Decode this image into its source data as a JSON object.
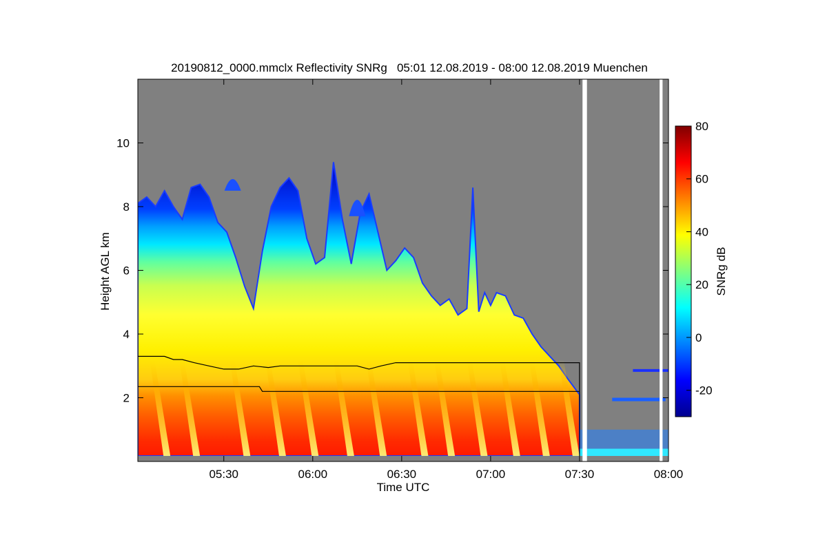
{
  "chart_data": {
    "type": "heatmap",
    "title": "20190812_0000.mmclx Reflectivity SNRg   05:01 12.08.2019 - 08:00 12.08.2019 Muenchen",
    "xlabel": "Time UTC",
    "ylabel": "Height AGL km",
    "x_range_minutes_utc": [
      301,
      480
    ],
    "x_ticks": [
      {
        "label": "05:30",
        "minutes": 330
      },
      {
        "label": "06:00",
        "minutes": 360
      },
      {
        "label": "06:30",
        "minutes": 390
      },
      {
        "label": "07:00",
        "minutes": 420
      },
      {
        "label": "07:30",
        "minutes": 450
      },
      {
        "label": "08:00",
        "minutes": 480
      }
    ],
    "y_range_km": [
      0,
      12
    ],
    "y_ticks": [
      {
        "label": "2",
        "km": 2
      },
      {
        "label": "4",
        "km": 4
      },
      {
        "label": "6",
        "km": 6
      },
      {
        "label": "8",
        "km": 8
      },
      {
        "label": "10",
        "km": 10
      }
    ],
    "colorbar": {
      "label": "SNRg dB",
      "range": [
        -30,
        80
      ],
      "ticks": [
        {
          "label": "80",
          "value": 80
        },
        {
          "label": "60",
          "value": 60
        },
        {
          "label": "40",
          "value": 40
        },
        {
          "label": "20",
          "value": 20
        },
        {
          "label": "0",
          "value": 0
        },
        {
          "label": "-20",
          "value": -20
        }
      ],
      "colors": [
        "#00008f",
        "#0000ff",
        "#0080ff",
        "#00ffff",
        "#80ff80",
        "#ffff00",
        "#ff8000",
        "#ff0000",
        "#800000"
      ]
    },
    "background_color": "#808080",
    "cloud_top_km": [
      [
        301,
        8.1
      ],
      [
        304,
        8.3
      ],
      [
        307,
        8.0
      ],
      [
        310,
        8.5
      ],
      [
        313,
        8.0
      ],
      [
        316,
        7.6
      ],
      [
        319,
        8.6
      ],
      [
        322,
        8.7
      ],
      [
        325,
        8.3
      ],
      [
        328,
        7.5
      ],
      [
        331,
        7.2
      ],
      [
        334,
        6.4
      ],
      [
        337,
        5.5
      ],
      [
        340,
        4.8
      ],
      [
        343,
        6.6
      ],
      [
        346,
        8.0
      ],
      [
        349,
        8.6
      ],
      [
        352,
        8.9
      ],
      [
        355,
        8.5
      ],
      [
        358,
        7.0
      ],
      [
        361,
        6.2
      ],
      [
        364,
        6.4
      ],
      [
        367,
        9.4
      ],
      [
        370,
        7.6
      ],
      [
        373,
        6.2
      ],
      [
        376,
        7.8
      ],
      [
        379,
        8.4
      ],
      [
        382,
        7.2
      ],
      [
        385,
        6.0
      ],
      [
        388,
        6.3
      ],
      [
        391,
        6.7
      ],
      [
        394,
        6.4
      ],
      [
        397,
        5.6
      ],
      [
        400,
        5.2
      ],
      [
        403,
        4.9
      ],
      [
        406,
        5.1
      ],
      [
        409,
        4.6
      ],
      [
        412,
        4.8
      ],
      [
        414,
        8.6
      ],
      [
        416,
        4.7
      ],
      [
        418,
        5.3
      ],
      [
        420,
        4.9
      ],
      [
        422,
        5.3
      ],
      [
        425,
        5.2
      ],
      [
        428,
        4.6
      ],
      [
        431,
        4.5
      ],
      [
        434,
        4.0
      ],
      [
        437,
        3.6
      ],
      [
        440,
        3.3
      ],
      [
        443,
        3.0
      ],
      [
        446,
        2.6
      ],
      [
        450,
        2.1
      ]
    ],
    "cloud_features": [
      {
        "center_min": 333,
        "top_km": 9.1,
        "base_km": 8.5
      },
      {
        "center_min": 375,
        "top_km": 8.6,
        "base_km": 7.7
      }
    ],
    "melting_layer_km": [
      [
        301,
        3.3
      ],
      [
        310,
        3.3
      ],
      [
        313,
        3.2
      ],
      [
        316,
        3.2
      ],
      [
        320,
        3.1
      ],
      [
        325,
        3.0
      ],
      [
        330,
        2.9
      ],
      [
        335,
        2.9
      ],
      [
        340,
        3.0
      ],
      [
        345,
        2.95
      ],
      [
        349,
        3.0
      ],
      [
        353,
        3.0
      ],
      [
        360,
        3.0
      ],
      [
        365,
        3.0
      ],
      [
        370,
        3.0
      ],
      [
        375,
        3.0
      ],
      [
        379,
        2.9
      ],
      [
        383,
        3.0
      ],
      [
        388,
        3.1
      ],
      [
        395,
        3.1
      ],
      [
        403,
        3.1
      ],
      [
        410,
        3.1
      ],
      [
        420,
        3.1
      ],
      [
        430,
        3.1
      ],
      [
        450,
        3.1
      ],
      [
        450,
        2.2
      ]
    ],
    "lower_line_km": [
      [
        301,
        2.35
      ],
      [
        342,
        2.35
      ],
      [
        343,
        2.2
      ],
      [
        450,
        2.2
      ]
    ],
    "rain_streak_minutes": [
      305,
      315,
      332,
      344,
      355,
      367,
      378,
      392,
      401,
      412,
      423,
      433,
      443
    ],
    "data_gaps_minutes": [
      [
        451,
        452.5
      ],
      [
        477,
        478
      ]
    ]
  }
}
